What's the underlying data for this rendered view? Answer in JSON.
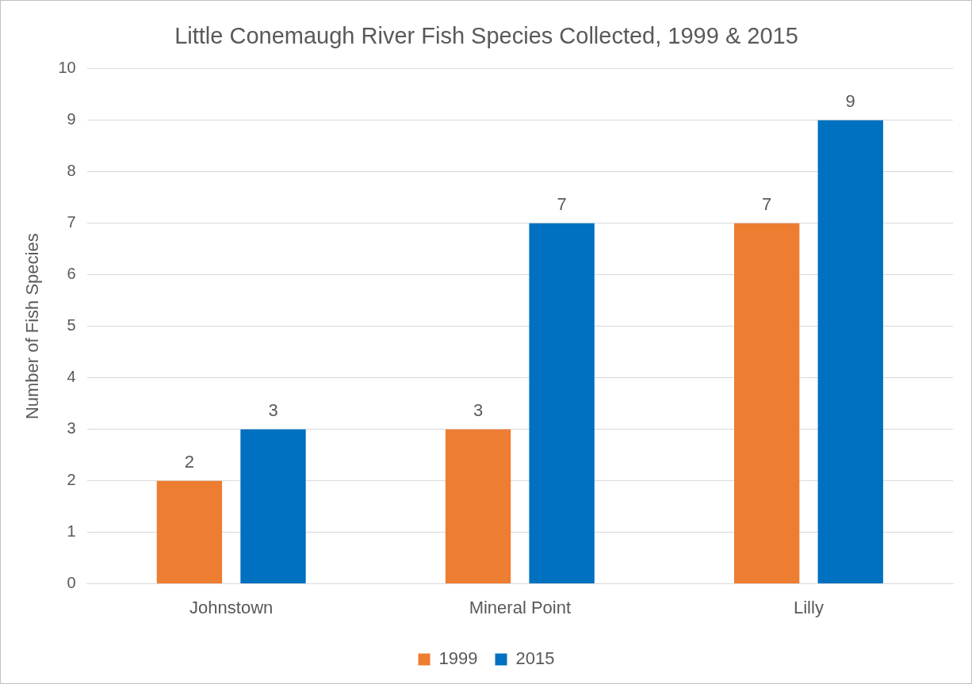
{
  "chart_data": {
    "type": "bar",
    "title": "Little Conemaugh River Fish Species Collected, 1999 & 2015",
    "ylabel": "Number of Fish Species",
    "categories": [
      "Johnstown",
      "Mineral Point",
      "Lilly"
    ],
    "series": [
      {
        "name": "1999",
        "color": "#ed7d31",
        "values": [
          2,
          3,
          7
        ]
      },
      {
        "name": "2015",
        "color": "#0070c0",
        "values": [
          3,
          7,
          9
        ]
      }
    ],
    "ylim": [
      0,
      10
    ],
    "yticks": [
      0,
      1,
      2,
      3,
      4,
      5,
      6,
      7,
      8,
      9,
      10
    ],
    "grid": "y",
    "legend": "bottom",
    "data_labels": true
  }
}
